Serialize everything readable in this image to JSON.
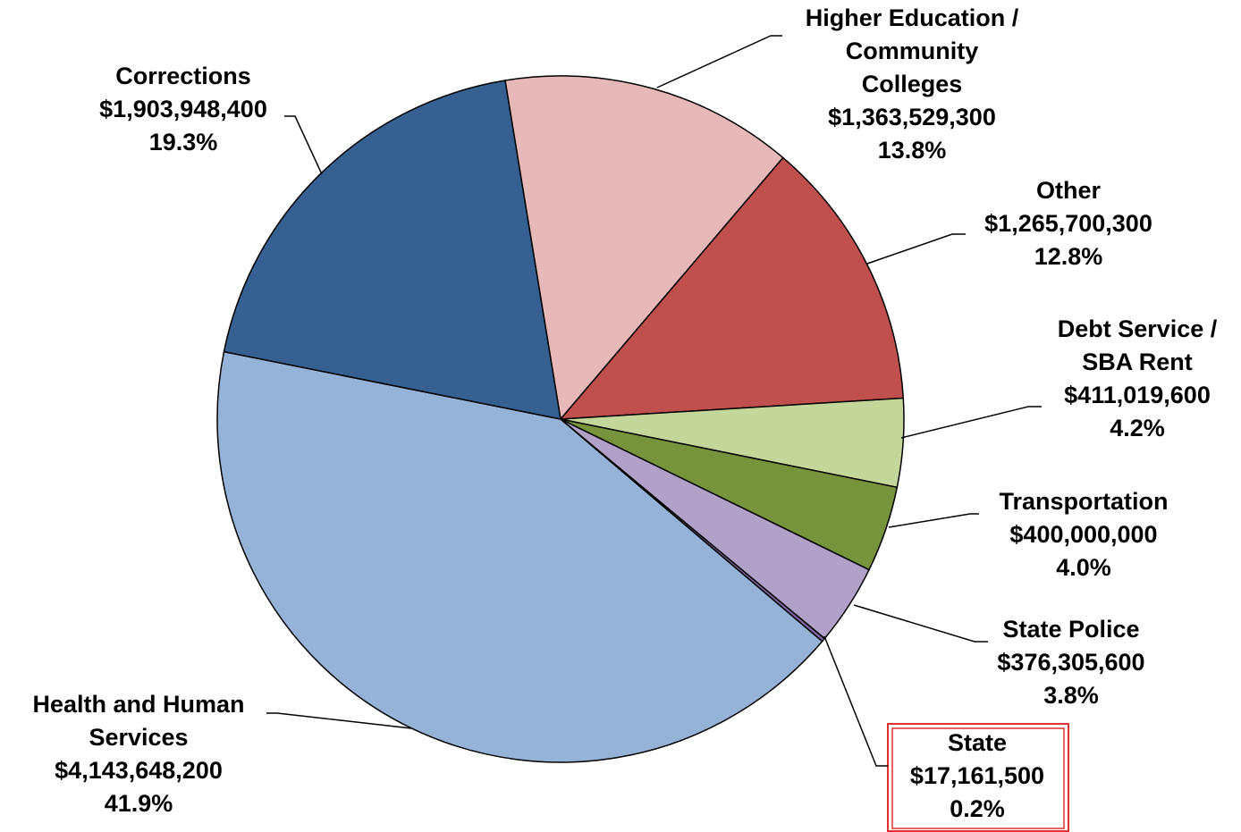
{
  "chart_data": {
    "type": "pie",
    "categories": [
      [
        "Higher Education /",
        "Community",
        "Colleges"
      ],
      [
        "Other"
      ],
      [
        "Debt Service /",
        "SBA Rent"
      ],
      [
        "Transportation"
      ],
      [
        "State Police"
      ],
      [
        "State"
      ],
      [
        "Health and Human",
        "Services"
      ],
      [
        "Corrections"
      ]
    ],
    "values": [
      1363529300,
      1265700300,
      411019600,
      400000000,
      376305600,
      17161500,
      4143648200,
      1903948400
    ],
    "value_labels": [
      "$1,363,529,300",
      "$1,265,700,300",
      "$411,019,600",
      "$400,000,000",
      "$376,305,600",
      "$17,161,500",
      "$4,143,648,200",
      "$1,903,948,400"
    ],
    "percent_labels": [
      "13.8%",
      "12.8%",
      "4.2%",
      "4.0%",
      "3.8%",
      "0.2%",
      "41.9%",
      "19.3%"
    ],
    "colors": [
      "#e6b8b7",
      "#c0504d",
      "#c4d79b",
      "#77933c",
      "#b1a0c7",
      "#8064a2",
      "#95b3d7",
      "#366092"
    ]
  }
}
